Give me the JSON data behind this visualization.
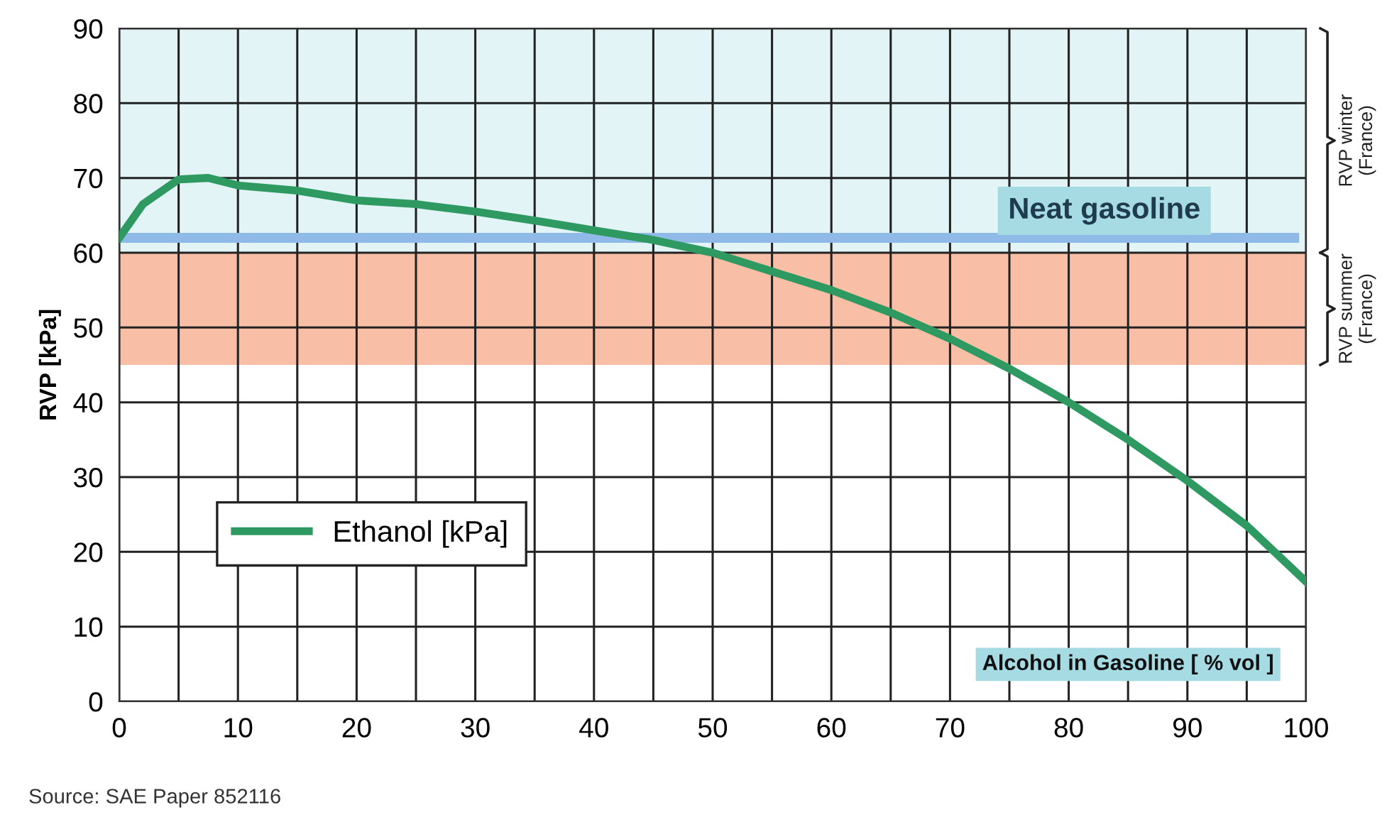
{
  "chart_data": {
    "type": "line",
    "xlabel": "Alcohol in Gasoline [ % vol ]",
    "ylabel": "RVP [kPa]",
    "x": [
      0,
      2,
      5,
      7.5,
      10,
      15,
      20,
      25,
      26,
      30,
      35,
      40,
      45,
      50,
      55,
      60,
      65,
      70,
      75,
      80,
      85,
      90,
      95,
      100
    ],
    "series": [
      {
        "name": "Ethanol [kPa]",
        "color": "#2e9a62",
        "values": [
          62,
          66.5,
          69.8,
          70,
          69,
          68.3,
          67,
          66.5,
          66.3,
          65.5,
          64.3,
          63,
          61.7,
          60,
          57.5,
          55,
          52,
          48.5,
          44.5,
          40,
          35,
          29.5,
          23.5,
          16
        ]
      }
    ],
    "xlim": [
      0,
      100
    ],
    "xticks": [
      0,
      {
        "value": 5,
        "label": null
      },
      10,
      {
        "value": 15,
        "label": null
      },
      20,
      {
        "value": 25,
        "label": null
      },
      30,
      {
        "value": 35,
        "label": null
      },
      40,
      {
        "value": 45,
        "label": null
      },
      50,
      {
        "value": 55,
        "label": null
      },
      60,
      {
        "value": 65,
        "label": null
      },
      70,
      {
        "value": 75,
        "label": null
      },
      80,
      {
        "value": 85,
        "label": null
      },
      90,
      {
        "value": 95,
        "label": null
      },
      100
    ],
    "ylim": [
      0,
      90
    ],
    "yticks": [
      0,
      10,
      20,
      30,
      40,
      50,
      60,
      70,
      80,
      90
    ],
    "ref_lines": [
      {
        "axis": "y",
        "value": 62,
        "label": "Neat gasoline",
        "color": "#8fb9e6"
      }
    ],
    "bands": [
      {
        "axis": "y",
        "from": 60,
        "to": 90,
        "label": "RVP winter (France)",
        "color": "#e3f4f7"
      },
      {
        "axis": "y",
        "from": 45,
        "to": 60,
        "label": "RVP summer (France)",
        "color": "#f9bfa6"
      }
    ],
    "grid": true,
    "legend": "bottom left",
    "marker": "none",
    "line_style": "solid",
    "annotations": [
      "Source: SAE Paper 852116"
    ]
  }
}
